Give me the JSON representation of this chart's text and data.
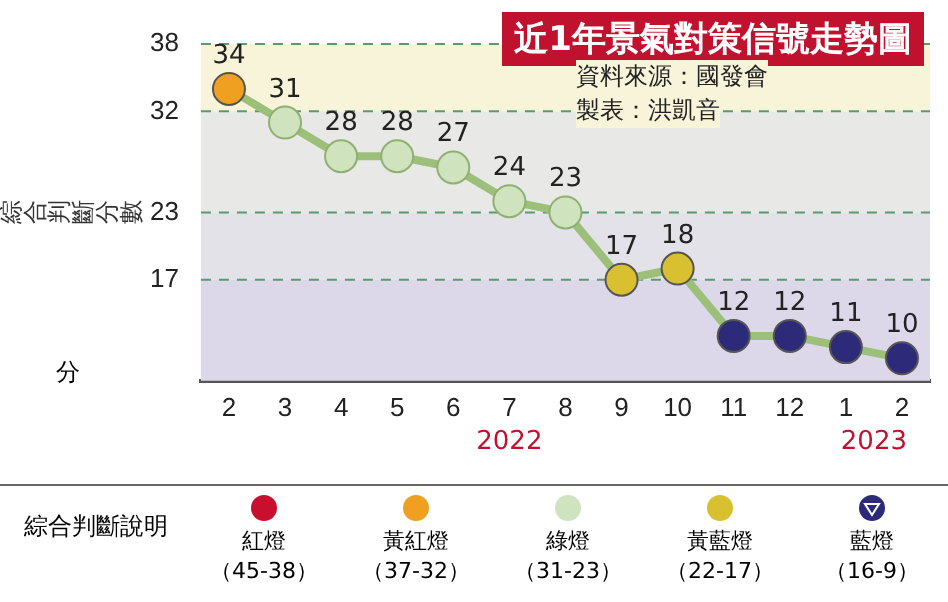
{
  "chart_data": {
    "type": "line",
    "title": "近1年景氣對策信號走勢圖",
    "ylabel": "綜合判斷分數",
    "categories": [
      "2",
      "3",
      "4",
      "5",
      "6",
      "7",
      "8",
      "9",
      "10",
      "11",
      "12",
      "1",
      "2"
    ],
    "values": [
      34,
      31,
      28,
      28,
      27,
      24,
      23,
      17,
      18,
      12,
      12,
      11,
      10
    ],
    "colors": [
      "#f0a020",
      "#cfe3bf",
      "#cfe3bf",
      "#cfe3bf",
      "#cfe3bf",
      "#cfe3bf",
      "#cfe3bf",
      "#d8c030",
      "#d8c030",
      "#2e2a7a",
      "#2e2a7a",
      "#2e2a7a",
      "#2e2a7a"
    ],
    "color": "#9cc07a",
    "marker": "circle",
    "data_labels": true,
    "grid": "y",
    "legend": false,
    "ylim": [
      8,
      38
    ],
    "yticks": [
      17,
      23,
      32,
      38
    ],
    "bands": [
      {
        "axis": "y",
        "from": 32,
        "to": 38,
        "color": "#f8f4da"
      },
      {
        "axis": "y",
        "from": 23,
        "to": 32,
        "color": "#e8e8e6"
      },
      {
        "axis": "y",
        "from": 17,
        "to": 23,
        "color": "#e2e2e8"
      },
      {
        "axis": "y",
        "from": 8,
        "to": 17,
        "color": "#dcd8ea"
      }
    ],
    "annotations": [
      "2022",
      "2023",
      "資料來源：國發會",
      "製表：洪凱音",
      "分",
      "綜合判斷說明",
      "紅燈（45-38）",
      "黃紅燈（37-32）",
      "綠燈（31-23）",
      "黃藍燈（22-17）",
      "藍燈（16-9）"
    ]
  }
}
